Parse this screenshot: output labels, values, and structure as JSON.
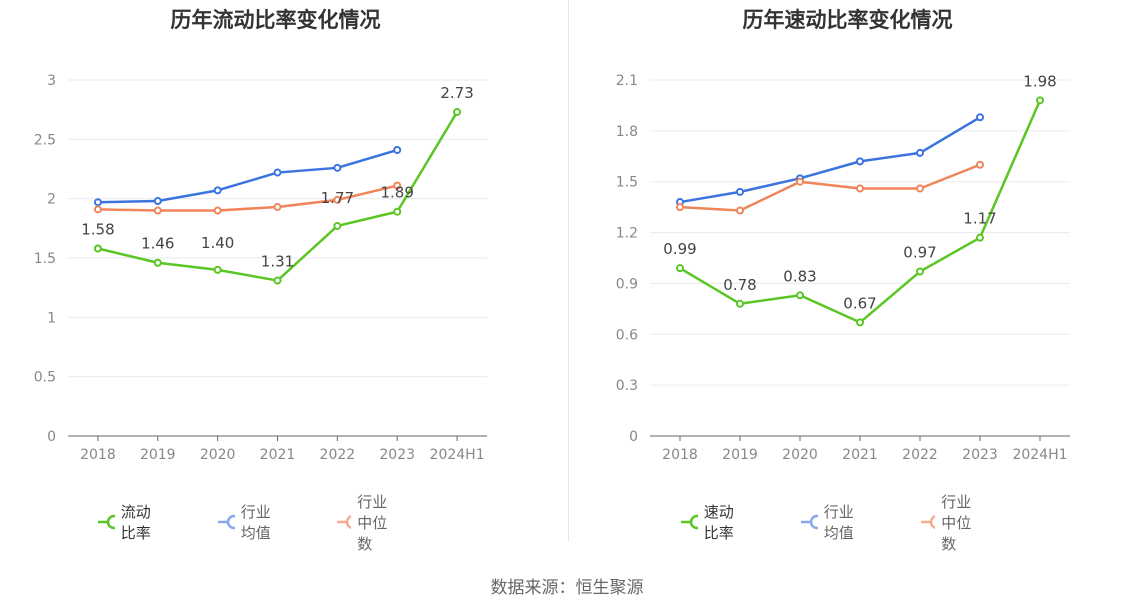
{
  "source": "数据来源：恒生聚源",
  "chart_data": [
    {
      "type": "line",
      "title": "历年流动比率变化情况",
      "categories": [
        "2018",
        "2019",
        "2020",
        "2021",
        "2022",
        "2023",
        "2024H1"
      ],
      "ylim": [
        0,
        3
      ],
      "yticks": [
        "0",
        "0.5",
        "1",
        "1.5",
        "2",
        "2.5",
        "3"
      ],
      "grid": true,
      "legend": "bottom",
      "series": [
        {
          "name": "流动比率",
          "color": "#5ac623",
          "values": [
            1.58,
            1.46,
            1.4,
            1.31,
            1.77,
            1.89,
            2.73
          ],
          "labels": [
            "1.58",
            "1.46",
            "1.40",
            "1.31",
            "1.77",
            "1.89",
            "2.73"
          ]
        },
        {
          "name": "行业均值",
          "color": "#3b73e0",
          "values": [
            1.97,
            1.98,
            2.07,
            2.22,
            2.26,
            2.41,
            null
          ]
        },
        {
          "name": "行业中位数",
          "color": "#f0845a",
          "values": [
            1.91,
            1.9,
            1.9,
            1.93,
            1.99,
            2.11,
            null
          ]
        }
      ]
    },
    {
      "type": "line",
      "title": "历年速动比率变化情况",
      "categories": [
        "2018",
        "2019",
        "2020",
        "2021",
        "2022",
        "2023",
        "2024H1"
      ],
      "ylim": [
        0,
        2.1
      ],
      "yticks": [
        "0",
        "0.3",
        "0.6",
        "0.9",
        "1.2",
        "1.5",
        "1.8",
        "2.1"
      ],
      "grid": true,
      "legend": "bottom",
      "series": [
        {
          "name": "速动比率",
          "color": "#5ac623",
          "values": [
            0.99,
            0.78,
            0.83,
            0.67,
            0.97,
            1.17,
            1.98
          ],
          "labels": [
            "0.99",
            "0.78",
            "0.83",
            "0.67",
            "0.97",
            "1.17",
            "1.98"
          ]
        },
        {
          "name": "行业均值",
          "color": "#3b73e0",
          "values": [
            1.38,
            1.44,
            1.52,
            1.62,
            1.67,
            1.88,
            null
          ]
        },
        {
          "name": "行业中位数",
          "color": "#f0845a",
          "values": [
            1.35,
            1.33,
            1.5,
            1.46,
            1.46,
            1.6,
            null
          ]
        }
      ]
    }
  ]
}
